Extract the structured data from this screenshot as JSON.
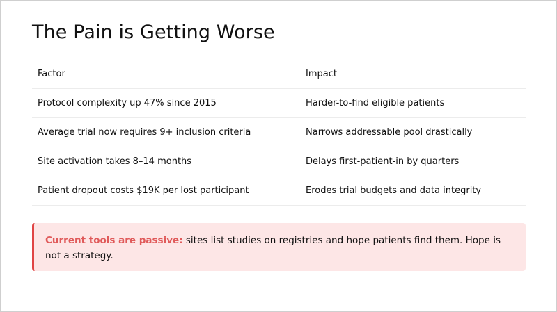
{
  "slide": {
    "title": "The Pain is Getting Worse"
  },
  "table": {
    "headers": [
      "Factor",
      "Impact"
    ],
    "rows": [
      [
        "Protocol complexity up 47% since 2015",
        "Harder-to-find eligible patients"
      ],
      [
        "Average trial now requires 9+ inclusion criteria",
        "Narrows addressable pool drastically"
      ],
      [
        "Site activation takes 8–14 months",
        "Delays first-patient-in by quarters"
      ],
      [
        "Patient dropout costs $19K per lost participant",
        "Erodes trial budgets and data integrity"
      ]
    ]
  },
  "callout": {
    "lead": "Current tools are passive:",
    "text": " sites list studies on registries and hope patients find them. Hope is not a strategy.",
    "accent_color": "#e04545",
    "background_color": "#fde6e6"
  }
}
